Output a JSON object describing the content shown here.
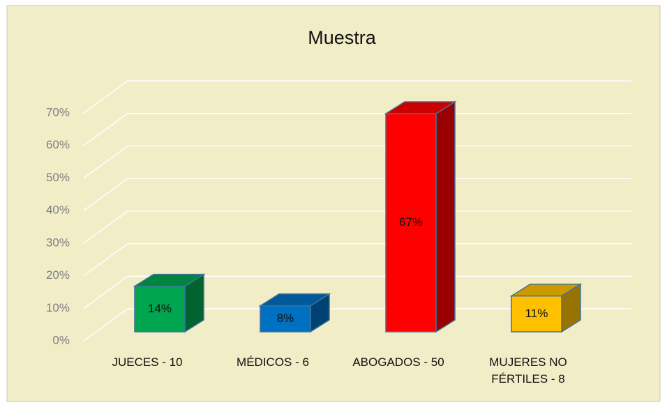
{
  "chart_data": {
    "type": "bar3d",
    "title": "Muestra",
    "categories": [
      "JUECES - 10",
      "MÉDICOS - 6",
      "ABOGADOS - 50",
      "MUJERES NO FÉRTILES - 8"
    ],
    "values": [
      14,
      8,
      67,
      11
    ],
    "value_labels": [
      "14%",
      "8%",
      "67%",
      "11%"
    ],
    "colors": [
      "#00a550",
      "#0070c0",
      "#ff0000",
      "#ffc000"
    ],
    "ylim": [
      0,
      70
    ],
    "yticks": [
      {
        "value": 0,
        "label": "0%"
      },
      {
        "value": 10,
        "label": "10%"
      },
      {
        "value": 20,
        "label": "20%"
      },
      {
        "value": 30,
        "label": "30%"
      },
      {
        "value": 40,
        "label": "40%"
      },
      {
        "value": 50,
        "label": "50%"
      },
      {
        "value": 60,
        "label": "60%"
      },
      {
        "value": 70,
        "label": "70%"
      }
    ],
    "grid": true
  }
}
